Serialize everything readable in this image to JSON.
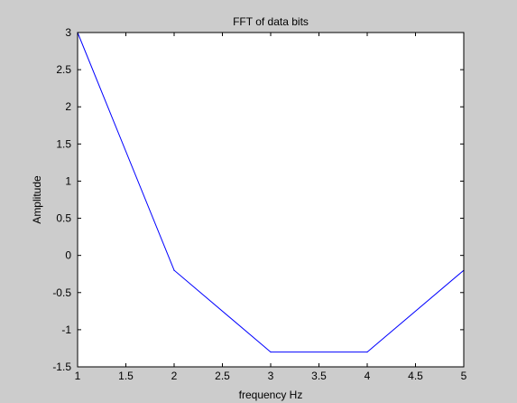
{
  "chart_data": {
    "type": "line",
    "title": "FFT of data bits",
    "xlabel": "frequency Hz",
    "ylabel": "Amplitude",
    "xlim": [
      1,
      5
    ],
    "ylim": [
      -1.5,
      3
    ],
    "xticks": [
      "1",
      "1.5",
      "2",
      "2.5",
      "3",
      "3.5",
      "4",
      "4.5",
      "5"
    ],
    "yticks": [
      "3",
      "2.5",
      "2",
      "1.5",
      "1",
      "0.5",
      "0",
      "-0.5",
      "-1",
      "-1.5"
    ],
    "grid": false,
    "legend": "none",
    "series": [
      {
        "x": [
          1,
          2,
          3,
          4,
          5
        ],
        "y": [
          3.0,
          -0.2,
          -1.3,
          -1.3,
          -0.2
        ],
        "color": "#0000ff"
      }
    ],
    "colors": {
      "background": "#cccccc",
      "axes": "#ffffff",
      "line": "#0000ff"
    }
  }
}
